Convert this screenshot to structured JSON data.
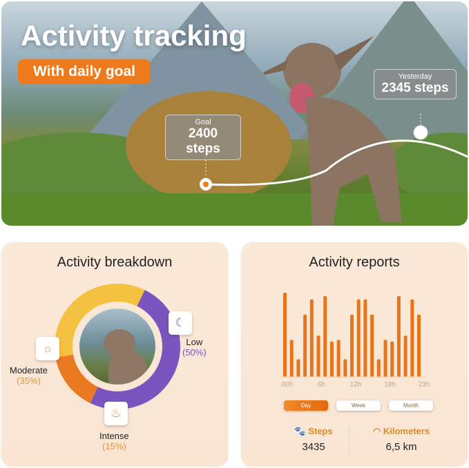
{
  "hero": {
    "title": "Activity tracking",
    "badge": "With daily goal",
    "goal": {
      "label": "Goal",
      "value": "2400 steps"
    },
    "yesterday": {
      "label": "Yesterday",
      "value": "2345 steps"
    }
  },
  "breakdown": {
    "title": "Activity breakdown",
    "segments": [
      {
        "name": "Low",
        "percent_label": "(50%)",
        "value": 50,
        "color": "#7a55c0",
        "icon": "moon-icon"
      },
      {
        "name": "Intense",
        "percent_label": "(15%)",
        "value": 15,
        "color": "#ea7a22",
        "icon": "flame-icon"
      },
      {
        "name": "Moderate",
        "percent_label": "(35%)",
        "value": 35,
        "color": "#f5c140",
        "icon": "sun-icon"
      }
    ]
  },
  "reports": {
    "title": "Activity reports",
    "chart_data": {
      "type": "bar",
      "x_ticks": [
        "00h",
        "6h",
        "12h",
        "18h",
        "23h"
      ],
      "values": [
        100,
        44,
        21,
        74,
        92,
        49,
        96,
        42,
        44,
        21,
        74,
        92,
        92,
        74,
        21,
        44,
        42,
        96,
        49,
        92,
        74
      ],
      "bar_color": "#e8741c"
    },
    "tabs": [
      {
        "label": "Day",
        "active": true
      },
      {
        "label": "Week",
        "active": false
      },
      {
        "label": "Month",
        "active": false
      }
    ],
    "steps": {
      "label": "Steps",
      "value": "3435",
      "icon": "paw-icon"
    },
    "km": {
      "label": "Kilometers",
      "value": "6,5 km",
      "icon": "speedometer-icon"
    }
  }
}
